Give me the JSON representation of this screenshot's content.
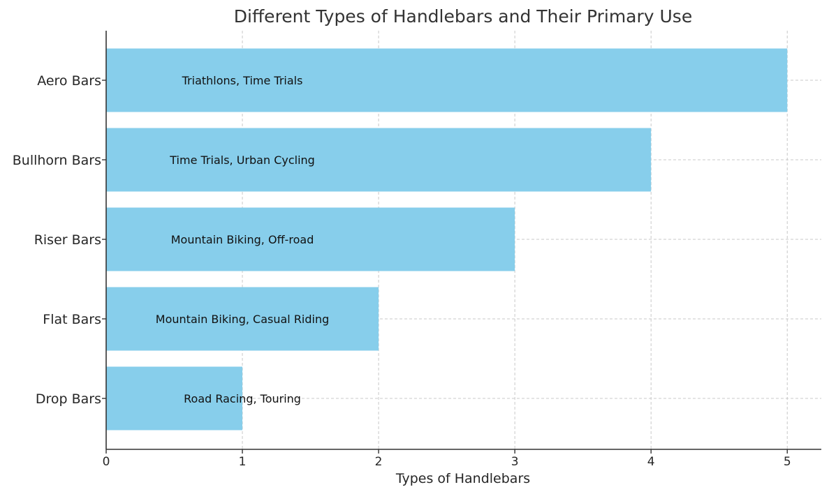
{
  "chart_data": {
    "type": "bar",
    "orientation": "horizontal",
    "title": "Different Types of Handlebars and Their Primary Use",
    "xlabel": "Types of Handlebars",
    "ylabel": "",
    "categories": [
      "Drop Bars",
      "Flat Bars",
      "Riser Bars",
      "Bullhorn Bars",
      "Aero Bars"
    ],
    "values": [
      1,
      2,
      3,
      4,
      5
    ],
    "bar_labels": [
      "Road Racing, Touring",
      "Mountain Biking, Casual Riding",
      "Mountain Biking, Off-road",
      "Time Trials, Urban Cycling",
      "Triathlons, Time Trials"
    ],
    "x_ticks": [
      "0",
      "1",
      "2",
      "3",
      "4",
      "5"
    ],
    "xlim": [
      0,
      5.25
    ],
    "grid": true,
    "bar_color": "#87CEEB"
  }
}
